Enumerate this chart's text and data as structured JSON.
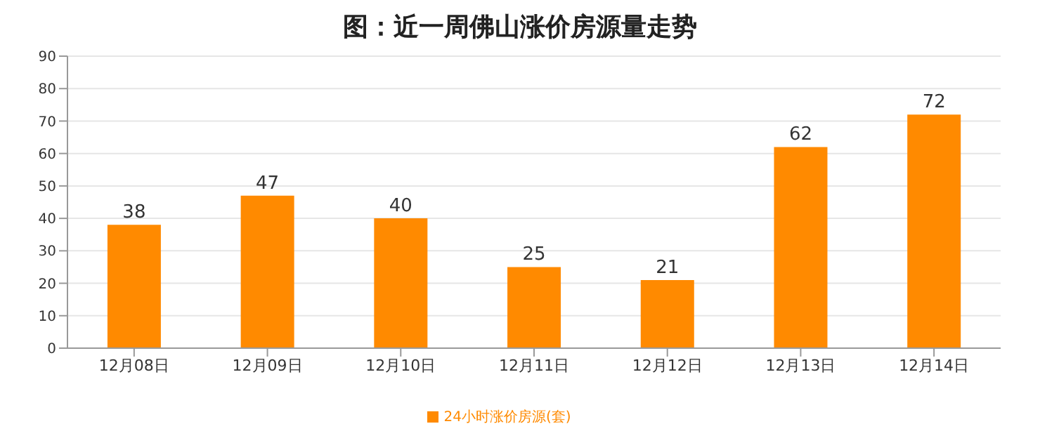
{
  "chart_data": {
    "type": "bar",
    "title": "图：近一周佛山涨价房源量走势",
    "categories": [
      "12月08日",
      "12月09日",
      "12月10日",
      "12月11日",
      "12月12日",
      "12月13日",
      "12月14日"
    ],
    "series": [
      {
        "name": "24小时涨价房源(套)",
        "color": "#ff8a00",
        "values": [
          38,
          47,
          40,
          25,
          21,
          62,
          72
        ]
      }
    ],
    "ylim": [
      0,
      90
    ],
    "yticks": [
      0,
      10,
      20,
      30,
      40,
      50,
      60,
      70,
      80,
      90
    ],
    "grid": "y",
    "legend": "bottom",
    "data_labels": true
  }
}
